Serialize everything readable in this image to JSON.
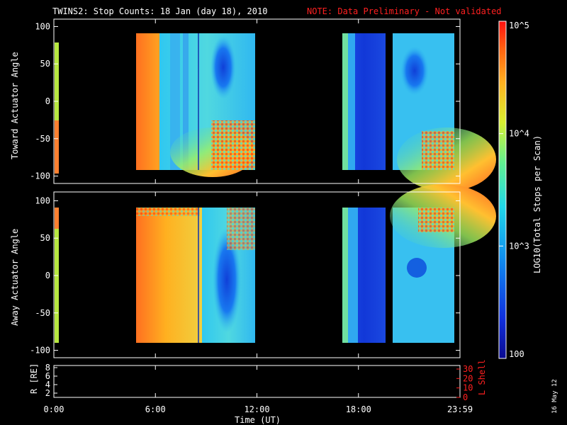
{
  "title": {
    "main": "TWINS2: Stop Counts: 18 Jan (day  18), 2010",
    "note": "NOTE: Data Preliminary - Not validated"
  },
  "panels": {
    "top_ylabel": "Toward Actuator Angle",
    "bottom_ylabel": "Away Actuator Angle",
    "y_ticks": [
      "100",
      "50",
      "0",
      "-50",
      "-100"
    ]
  },
  "orbit_panel": {
    "left_label": "R [RE]",
    "left_ticks": [
      "8",
      "6",
      "4",
      "2"
    ],
    "right_label": "L Shell",
    "right_ticks": [
      "30",
      "20",
      "10",
      "0"
    ]
  },
  "time_axis": {
    "label": "Time (UT)",
    "ticks": [
      "0:00",
      "6:00",
      "12:00",
      "18:00",
      "23:59"
    ]
  },
  "colorbar": {
    "label": "LOG10(Total Stops per Scan)",
    "ticks": [
      "10^5",
      "10^4",
      "10^3",
      "100"
    ]
  },
  "date_stamp": "16 May 12",
  "colors": {
    "note": "#ff2020",
    "orbit_axis": "#ff2020",
    "background": "#000000",
    "axis": "#ffffff"
  },
  "chart_data": [
    {
      "type": "heatmap",
      "title": "TWINS2: Stop Counts: 18 Jan (day  18), 2010",
      "xlabel": "Time (UT)",
      "ylabel": "Toward Actuator Angle",
      "x_range_hours": [
        0,
        24
      ],
      "ylim": [
        -110,
        110
      ],
      "angle_range": [
        -90,
        90
      ],
      "color_scale": "log",
      "color_range": [
        100,
        100000
      ],
      "data_segments_hours": [
        [
          0,
          0.3
        ],
        [
          4.8,
          12.0
        ],
        [
          17.0,
          19.8
        ],
        [
          20.2,
          24.0
        ]
      ],
      "features": [
        {
          "t_start": 4.8,
          "t_end": 6.0,
          "level": "high (~10^4.5)"
        },
        {
          "t_start": 6.0,
          "t_end": 8.5,
          "level": "medium (~10^3.7)"
        },
        {
          "t_start": 9.5,
          "t_end": 11.2,
          "angle_range": [
            20,
            80
          ],
          "level": "low (~10^3)"
        },
        {
          "t_start": 17.4,
          "t_end": 19.8,
          "level": "low (~10^2.5)"
        },
        {
          "t_start": 20.2,
          "t_end": 24.0,
          "level": "medium (~10^3.6)"
        }
      ]
    },
    {
      "type": "heatmap",
      "xlabel": "Time (UT)",
      "ylabel": "Away Actuator Angle",
      "x_range_hours": [
        0,
        24
      ],
      "ylim": [
        -110,
        110
      ],
      "angle_range": [
        -90,
        90
      ],
      "color_scale": "log",
      "color_range": [
        100,
        100000
      ],
      "data_segments_hours": [
        [
          0,
          0.3
        ],
        [
          4.8,
          12.0
        ],
        [
          17.0,
          19.8
        ],
        [
          20.2,
          24.0
        ]
      ],
      "features": [
        {
          "t_start": 4.8,
          "t_end": 8.5,
          "level": "high (~10^4.4)"
        },
        {
          "t_start": 9.2,
          "t_end": 11.0,
          "angle_range": [
            -60,
            50
          ],
          "level": "low (~10^3)"
        },
        {
          "t_start": 17.4,
          "t_end": 19.8,
          "level": "low (~10^2.5)"
        },
        {
          "t_start": 20.2,
          "t_end": 24.0,
          "level": "medium (~10^3.5)"
        }
      ]
    }
  ]
}
